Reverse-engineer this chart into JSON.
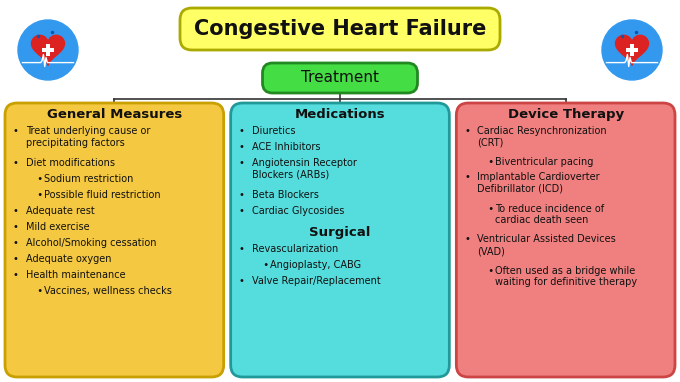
{
  "title": "Congestive Heart Failure",
  "title_bg": "#FFFF66",
  "title_border": "#AAAA00",
  "treatment_label": "Treatment",
  "treatment_bg": "#44DD44",
  "treatment_border": "#228822",
  "bg_color": "#FFFFFF",
  "col1_title": "General Measures",
  "col1_bg": "#F5C842",
  "col1_border": "#C8A000",
  "col1_items": [
    [
      "•",
      "Treat underlying cause or\nprecipitating factors",
      false
    ],
    [
      "•",
      "Diet modifications",
      false
    ],
    [
      "  •",
      "Sodium restriction",
      true
    ],
    [
      "  •",
      "Possible fluid restriction",
      true
    ],
    [
      "•",
      "Adequate rest",
      false
    ],
    [
      "•",
      "Mild exercise",
      false
    ],
    [
      "•",
      "Alcohol/Smoking cessation",
      false
    ],
    [
      "•",
      "Adequate oxygen",
      false
    ],
    [
      "•",
      "Health maintenance",
      false
    ],
    [
      "  •",
      "Vaccines, wellness checks",
      true
    ]
  ],
  "col2_title": "Medications",
  "col2_bg": "#55DDDD",
  "col2_border": "#229999",
  "col2_items": [
    [
      "•",
      "Diuretics",
      false
    ],
    [
      "•",
      "ACE Inhibitors",
      false
    ],
    [
      "•",
      "Angiotensin Receptor\nBlockers (ARBs)",
      false
    ],
    [
      "•",
      "Beta Blockers",
      false
    ],
    [
      "•",
      "Cardiac Glycosides",
      false
    ]
  ],
  "col2_subtitle": "Surgical",
  "col2_sub_items": [
    [
      "•",
      "Revascularization",
      false
    ],
    [
      "  •",
      "Angioplasty, CABG",
      true
    ],
    [
      "•",
      "Valve Repair/Replacement",
      false
    ]
  ],
  "col3_title": "Device Therapy",
  "col3_bg": "#F08080",
  "col3_border": "#CC4444",
  "col3_items": [
    [
      "•",
      "Cardiac Resynchronization\n(CRT)",
      false
    ],
    [
      "  •",
      "Biventricular pacing",
      true
    ],
    [
      "•",
      "Implantable Cardioverter\nDefibrillator (ICD)",
      false
    ],
    [
      "  •",
      "To reduce incidence of\ncardiac death seen",
      true
    ],
    [
      "•",
      "Ventricular Assisted Devices\n(VAD)",
      false
    ],
    [
      "  •",
      "Often used as a bridge while\nwaiting for definitive therapy",
      true
    ]
  ]
}
